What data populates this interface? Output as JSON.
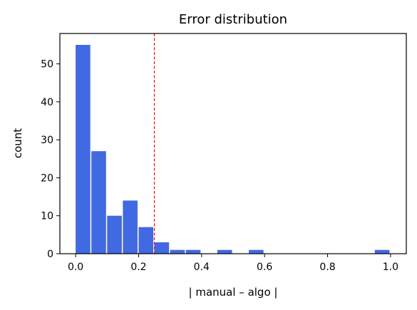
{
  "chart_data": {
    "type": "bar",
    "title": "Error distribution",
    "xlabel": "| manual – algo |",
    "ylabel": "count",
    "xlim": [
      -0.05,
      1.05
    ],
    "ylim": [
      0,
      58
    ],
    "xticks": [
      0.0,
      0.2,
      0.4,
      0.6,
      0.8,
      1.0
    ],
    "xtick_labels": [
      "0.0",
      "0.2",
      "0.4",
      "0.6",
      "0.8",
      "1.0"
    ],
    "yticks": [
      0,
      10,
      20,
      30,
      40,
      50
    ],
    "ytick_labels": [
      "0",
      "10",
      "20",
      "30",
      "40",
      "50"
    ],
    "bin_width": 0.05,
    "bins": [
      {
        "x0": 0.0,
        "count": 55
      },
      {
        "x0": 0.05,
        "count": 27
      },
      {
        "x0": 0.1,
        "count": 10
      },
      {
        "x0": 0.15,
        "count": 14
      },
      {
        "x0": 0.2,
        "count": 7
      },
      {
        "x0": 0.25,
        "count": 3
      },
      {
        "x0": 0.3,
        "count": 1
      },
      {
        "x0": 0.35,
        "count": 1
      },
      {
        "x0": 0.4,
        "count": 0
      },
      {
        "x0": 0.45,
        "count": 1
      },
      {
        "x0": 0.5,
        "count": 0
      },
      {
        "x0": 0.55,
        "count": 1
      },
      {
        "x0": 0.6,
        "count": 0
      },
      {
        "x0": 0.65,
        "count": 0
      },
      {
        "x0": 0.7,
        "count": 0
      },
      {
        "x0": 0.75,
        "count": 0
      },
      {
        "x0": 0.8,
        "count": 0
      },
      {
        "x0": 0.85,
        "count": 0
      },
      {
        "x0": 0.9,
        "count": 0
      },
      {
        "x0": 0.95,
        "count": 1
      }
    ],
    "reference_line": {
      "x": 0.25,
      "style": "dashed",
      "color": "#ff0000"
    },
    "bar_color": "#4169e1",
    "grid": false,
    "legend": "none"
  }
}
